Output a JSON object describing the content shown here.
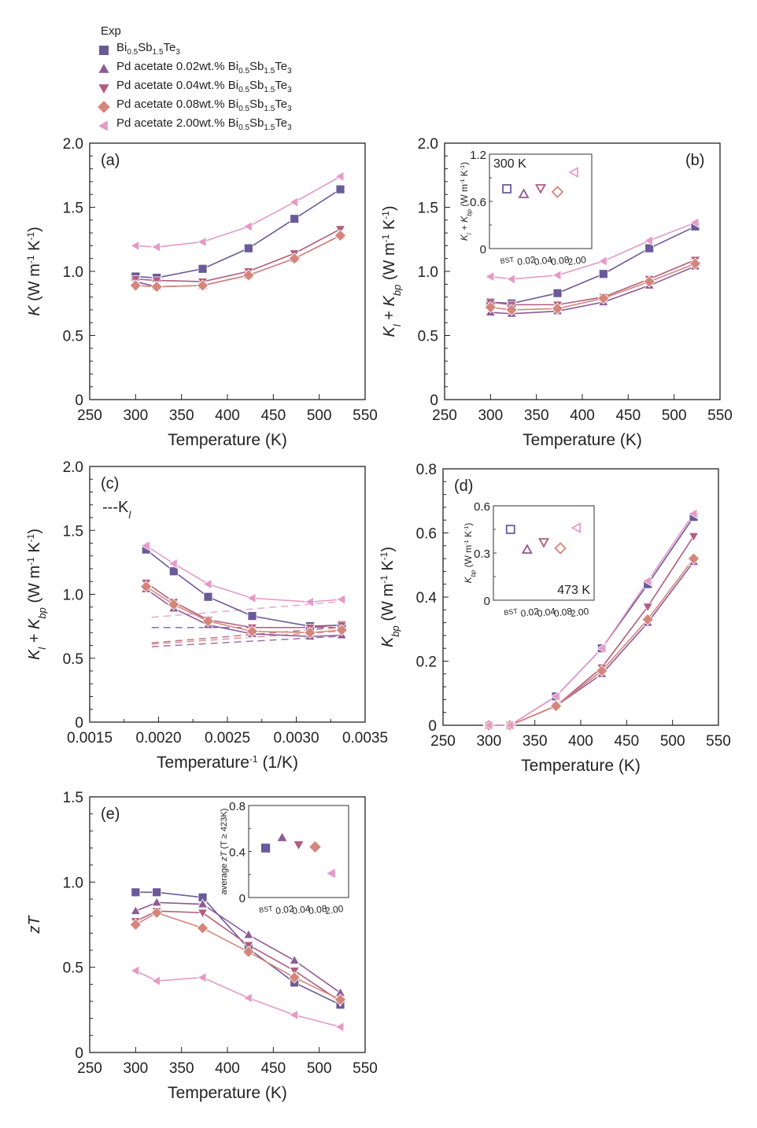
{
  "legend": {
    "title": "Exp",
    "entries": [
      {
        "prefix": "",
        "formula": [
          "Bi",
          "0.5",
          "Sb",
          "1.5",
          "Te",
          "3"
        ],
        "marker": "square",
        "color": "#6a5a9a"
      },
      {
        "prefix": "Pd acetate 0.02wt.% ",
        "formula": [
          "Bi",
          "0.5",
          "Sb",
          "1.5",
          "Te",
          "3"
        ],
        "marker": "triangle-up",
        "color": "#8e5a98"
      },
      {
        "prefix": "Pd acetate 0.04wt.% ",
        "formula": [
          "Bi",
          "0.5",
          "Sb",
          "1.5",
          "Te",
          "3"
        ],
        "marker": "triangle-down",
        "color": "#b25c7e"
      },
      {
        "prefix": "Pd acetate 0.08wt.% ",
        "formula": [
          "Bi",
          "0.5",
          "Sb",
          "1.5",
          "Te",
          "3"
        ],
        "marker": "diamond",
        "color": "#d6857a"
      },
      {
        "prefix": "Pd acetate 2.00wt.% ",
        "formula": [
          "Bi",
          "0.5",
          "Sb",
          "1.5",
          "Te",
          "3"
        ],
        "marker": "triangle-left",
        "color": "#e59ac6"
      }
    ]
  },
  "chart_data": [
    {
      "id": "a",
      "type": "line",
      "panel_label": "(a)",
      "xlabel": "Temperature  (K)",
      "ylabel": "K (W m-1 K-1)",
      "xlim": [
        250,
        550
      ],
      "ylim": [
        0,
        2.0
      ],
      "xticks": [
        250,
        300,
        350,
        400,
        450,
        500,
        550
      ],
      "xtick_labels": [
        "250",
        "300",
        "350",
        "400",
        "450",
        "500",
        "550"
      ],
      "yticks": [
        0,
        0.5,
        1.0,
        1.5,
        2.0
      ],
      "ytick_labels": [
        "0",
        "0.5",
        "1.0",
        "1.5",
        "2.0"
      ],
      "x": [
        300,
        323,
        373,
        423,
        473,
        523
      ],
      "series": [
        {
          "name": "Bi0.5Sb1.5Te3",
          "values": [
            0.96,
            0.95,
            1.02,
            1.18,
            1.41,
            1.64
          ]
        },
        {
          "name": "Pd acetate 0.02wt.%",
          "values": [
            0.92,
            0.88,
            0.89,
            0.97,
            1.1,
            1.28
          ]
        },
        {
          "name": "Pd acetate 0.04wt.%",
          "values": [
            0.94,
            0.93,
            0.92,
            1.0,
            1.14,
            1.33
          ]
        },
        {
          "name": "Pd acetate 0.08wt.%",
          "values": [
            0.89,
            0.88,
            0.89,
            0.97,
            1.1,
            1.28
          ]
        },
        {
          "name": "Pd acetate 2.00wt.%",
          "values": [
            1.2,
            1.19,
            1.23,
            1.35,
            1.54,
            1.74
          ]
        }
      ]
    },
    {
      "id": "b",
      "type": "line",
      "panel_label": "(b)",
      "xlabel": "Temperature  (K)",
      "ylabel": "Kl + Kbp (W m-1 K-1)",
      "xlim": [
        250,
        550
      ],
      "ylim": [
        0,
        2.0
      ],
      "xticks": [
        250,
        300,
        350,
        400,
        450,
        500,
        550
      ],
      "xtick_labels": [
        "250",
        "300",
        "350",
        "400",
        "450",
        "500",
        "550"
      ],
      "yticks": [
        0,
        0.5,
        1.0,
        1.5,
        2.0
      ],
      "ytick_labels": [
        "0",
        "0.5",
        "1.0",
        "1.5",
        "2.0"
      ],
      "x": [
        300,
        323,
        373,
        423,
        473,
        523
      ],
      "series": [
        {
          "name": "Bi0.5Sb1.5Te3",
          "values": [
            0.76,
            0.75,
            0.83,
            0.98,
            1.18,
            1.35
          ]
        },
        {
          "name": "Pd acetate 0.02wt.%",
          "values": [
            0.68,
            0.67,
            0.69,
            0.76,
            0.89,
            1.04
          ]
        },
        {
          "name": "Pd acetate 0.04wt.%",
          "values": [
            0.76,
            0.74,
            0.74,
            0.8,
            0.94,
            1.09
          ]
        },
        {
          "name": "Pd acetate 0.08wt.%",
          "values": [
            0.72,
            0.7,
            0.71,
            0.79,
            0.92,
            1.06
          ]
        },
        {
          "name": "Pd acetate 2.00wt.%",
          "values": [
            0.96,
            0.94,
            0.97,
            1.08,
            1.24,
            1.38
          ]
        }
      ],
      "inset": {
        "type": "scatter",
        "annotation": "300 K",
        "ylabel": "Kl + Kbp (W m-1 K-1)",
        "categories": [
          "BST",
          "0.02",
          "0.04",
          "0.08",
          "2.00"
        ],
        "values": [
          0.76,
          0.69,
          0.77,
          0.72,
          0.97
        ],
        "ylim": [
          0,
          1.2
        ],
        "yticks": [
          0,
          0.6,
          1.2
        ],
        "ytick_labels": [
          "0",
          "0.6",
          "1.2"
        ],
        "filled": false
      }
    },
    {
      "id": "c",
      "type": "line",
      "panel_label": "(c)",
      "annotation": "---Kl",
      "xlabel": "Temperature-1  (1/K)",
      "ylabel": "Kl + Kbp (W m-1 K-1)",
      "xlim": [
        0.0015,
        0.0035
      ],
      "ylim": [
        0,
        2.0
      ],
      "xticks": [
        0.0015,
        0.002,
        0.0025,
        0.003,
        0.0035
      ],
      "xtick_labels": [
        "0.0015",
        "0.0020",
        "0.0025",
        "0.0030",
        "0.0035"
      ],
      "yticks": [
        0,
        0.5,
        1.0,
        1.5,
        2.0
      ],
      "ytick_labels": [
        "0",
        "0.5",
        "1.0",
        "1.5",
        "2.0"
      ],
      "x": [
        0.00191,
        0.00211,
        0.00236,
        0.00268,
        0.0031,
        0.00333
      ],
      "series": [
        {
          "name": "Bi0.5Sb1.5Te3",
          "values": [
            1.35,
            1.18,
            0.98,
            0.83,
            0.75,
            0.76
          ]
        },
        {
          "name": "Pd acetate 0.02wt.%",
          "values": [
            1.04,
            0.89,
            0.76,
            0.69,
            0.67,
            0.68
          ]
        },
        {
          "name": "Pd acetate 0.04wt.%",
          "values": [
            1.09,
            0.94,
            0.8,
            0.74,
            0.74,
            0.76
          ]
        },
        {
          "name": "Pd acetate 0.08wt.%",
          "values": [
            1.06,
            0.92,
            0.79,
            0.71,
            0.7,
            0.72
          ]
        },
        {
          "name": "Pd acetate 2.00wt.%",
          "values": [
            1.38,
            1.24,
            1.08,
            0.97,
            0.94,
            0.96
          ]
        }
      ],
      "kl_dashed": [
        {
          "name": "Bi0.5Sb1.5Te3",
          "x": [
            0.00195,
            0.0033
          ],
          "values": [
            0.74,
            0.74
          ]
        },
        {
          "name": "Pd acetate 0.02wt.%",
          "x": [
            0.00195,
            0.0033
          ],
          "values": [
            0.59,
            0.67
          ]
        },
        {
          "name": "Pd acetate 0.04wt.%",
          "x": [
            0.00195,
            0.0033
          ],
          "values": [
            0.62,
            0.74
          ]
        },
        {
          "name": "Pd acetate 0.08wt.%",
          "x": [
            0.00195,
            0.0033
          ],
          "values": [
            0.61,
            0.71
          ]
        },
        {
          "name": "Pd acetate 2.00wt.%",
          "x": [
            0.00195,
            0.0033
          ],
          "values": [
            0.82,
            0.94
          ]
        }
      ]
    },
    {
      "id": "d",
      "type": "line",
      "panel_label": "(d)",
      "xlabel": "Temperature  (K)",
      "ylabel": "Kbp (W m-1 K-1)",
      "xlim": [
        250,
        550
      ],
      "ylim": [
        0,
        0.8
      ],
      "xticks": [
        250,
        300,
        350,
        400,
        450,
        500,
        550
      ],
      "xtick_labels": [
        "250",
        "300",
        "350",
        "400",
        "450",
        "500",
        "550"
      ],
      "yticks": [
        0,
        0.2,
        0.4,
        0.6,
        0.8
      ],
      "ytick_labels": [
        "0",
        "0.2",
        "0.4",
        "0.6",
        "0.8"
      ],
      "x": [
        300,
        323,
        373,
        423,
        473,
        523
      ],
      "series": [
        {
          "name": "Bi0.5Sb1.5Te3",
          "values": [
            0,
            0,
            0.09,
            0.24,
            0.44,
            0.65
          ]
        },
        {
          "name": "Pd acetate 0.02wt.%",
          "values": [
            0,
            0,
            0.06,
            0.16,
            0.32,
            0.51
          ]
        },
        {
          "name": "Pd acetate 0.04wt.%",
          "values": [
            0,
            0,
            0.06,
            0.18,
            0.37,
            0.59
          ]
        },
        {
          "name": "Pd acetate 0.08wt.%",
          "values": [
            0,
            0,
            0.06,
            0.17,
            0.33,
            0.52
          ]
        },
        {
          "name": "Pd acetate 2.00wt.%",
          "values": [
            0,
            0,
            0.09,
            0.24,
            0.45,
            0.66
          ]
        }
      ],
      "inset": {
        "type": "scatter",
        "annotation": "473 K",
        "ylabel": "Kbp (W m-1 K-1)",
        "categories": [
          "BST",
          "0.02",
          "0.04",
          "0.08",
          "2.00"
        ],
        "values": [
          0.45,
          0.32,
          0.37,
          0.33,
          0.46
        ],
        "ylim": [
          0,
          0.6
        ],
        "yticks": [
          0,
          0.3,
          0.6
        ],
        "ytick_labels": [
          "0",
          "0.3",
          "0.6"
        ],
        "filled": false
      }
    },
    {
      "id": "e",
      "type": "line",
      "panel_label": "(e)",
      "xlabel": "Temperature  (K)",
      "ylabel": "zT",
      "xlim": [
        250,
        550
      ],
      "ylim": [
        0,
        1.5
      ],
      "xticks": [
        250,
        300,
        350,
        400,
        450,
        500,
        550
      ],
      "xtick_labels": [
        "250",
        "300",
        "350",
        "400",
        "450",
        "500",
        "550"
      ],
      "yticks": [
        0,
        0.5,
        1.0,
        1.5
      ],
      "ytick_labels": [
        "0",
        "0.5",
        "1.0",
        "1.5"
      ],
      "x": [
        300,
        323,
        373,
        423,
        473,
        523
      ],
      "series": [
        {
          "name": "Bi0.5Sb1.5Te3",
          "values": [
            0.94,
            0.94,
            0.91,
            0.61,
            0.41,
            0.28
          ]
        },
        {
          "name": "Pd acetate 0.02wt.%",
          "values": [
            0.83,
            0.88,
            0.87,
            0.69,
            0.54,
            0.35
          ]
        },
        {
          "name": "Pd acetate 0.04wt.%",
          "values": [
            0.77,
            0.83,
            0.82,
            0.63,
            0.48,
            0.3
          ]
        },
        {
          "name": "Pd acetate 0.08wt.%",
          "values": [
            0.75,
            0.82,
            0.73,
            0.59,
            0.44,
            0.31
          ]
        },
        {
          "name": "Pd acetate 2.00wt.%",
          "values": [
            0.48,
            0.42,
            0.44,
            0.32,
            0.22,
            0.15
          ]
        }
      ],
      "inset": {
        "type": "scatter",
        "annotation": "",
        "ylabel": "average zT (T ≥ 423K)",
        "categories": [
          "BST",
          "0.02",
          "0.04",
          "0.08",
          "2.00"
        ],
        "values": [
          0.43,
          0.52,
          0.46,
          0.44,
          0.21
        ],
        "ylim": [
          0,
          0.8
        ],
        "yticks": [
          0,
          0.4,
          0.8
        ],
        "ytick_labels": [
          "0",
          "0.4",
          "0.8"
        ],
        "filled": true
      }
    }
  ]
}
